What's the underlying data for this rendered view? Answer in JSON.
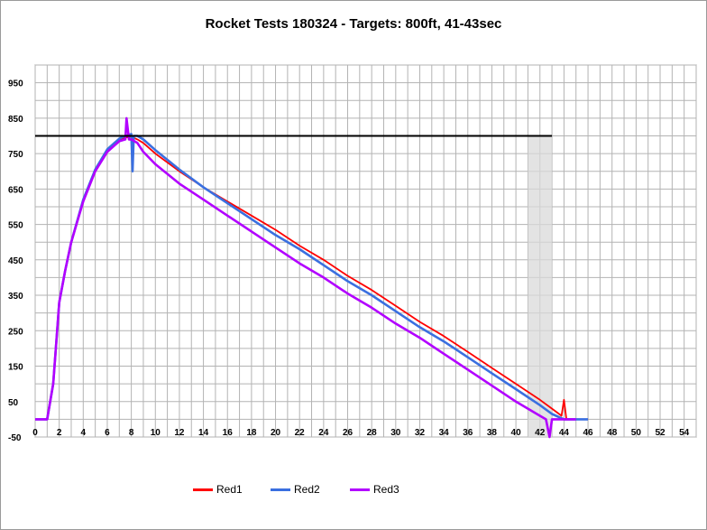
{
  "chart_data": {
    "type": "line",
    "title": "Rocket Tests 180324 - Targets: 800ft, 41-43sec",
    "xlabel": "",
    "ylabel": "",
    "xlim": [
      0,
      55
    ],
    "ylim": [
      -50,
      1000
    ],
    "x_ticks": [
      "0",
      "2",
      "4",
      "6",
      "8",
      "10",
      "12",
      "14",
      "16",
      "18",
      "20",
      "22",
      "24",
      "26",
      "28",
      "30",
      "32",
      "34",
      "36",
      "38",
      "40",
      "42",
      "44",
      "46",
      "48",
      "50",
      "52",
      "54"
    ],
    "y_ticks": [
      "-50",
      "50",
      "150",
      "250",
      "350",
      "450",
      "550",
      "650",
      "750",
      "850",
      "950"
    ],
    "grid": true,
    "legend_position": "bottom",
    "target_altitude": 800,
    "target_time_window": [
      41,
      43
    ],
    "colors": {
      "target_line": "#000000",
      "target_band": "#d9d9d9",
      "grid": "#b3b3b3"
    },
    "series": [
      {
        "name": "Red1",
        "color": "#ff0000",
        "x": [
          0,
          1,
          1.5,
          2,
          2.5,
          3,
          4,
          5,
          6,
          7,
          7.5,
          8,
          8.5,
          9,
          10,
          12,
          14,
          16,
          18,
          20,
          22,
          24,
          26,
          28,
          30,
          32,
          34,
          36,
          38,
          40,
          42,
          43,
          43.8,
          44,
          44.2,
          45,
          46
        ],
        "y": [
          0,
          0,
          100,
          330,
          420,
          500,
          620,
          705,
          760,
          790,
          795,
          798,
          790,
          780,
          750,
          700,
          655,
          615,
          575,
          535,
          490,
          450,
          405,
          365,
          320,
          275,
          235,
          190,
          145,
          100,
          55,
          30,
          10,
          55,
          0,
          0,
          0
        ]
      },
      {
        "name": "Red2",
        "color": "#3a6fe0",
        "x": [
          0,
          1,
          1.5,
          2,
          2.5,
          3,
          4,
          5,
          6,
          7,
          7.5,
          8,
          8.1,
          8.2,
          8.5,
          9,
          10,
          12,
          14,
          16,
          18,
          20,
          22,
          24,
          26,
          28,
          30,
          32,
          34,
          36,
          38,
          40,
          42,
          43,
          44,
          45,
          46
        ],
        "y": [
          0,
          0,
          100,
          330,
          420,
          500,
          620,
          705,
          762,
          792,
          800,
          805,
          700,
          800,
          800,
          790,
          760,
          705,
          655,
          610,
          565,
          520,
          480,
          435,
          390,
          350,
          305,
          260,
          220,
          175,
          130,
          85,
          40,
          15,
          0,
          0,
          0
        ]
      },
      {
        "name": "Red3",
        "color": "#b200ff",
        "x": [
          0,
          1,
          1.5,
          2,
          2.5,
          3,
          4,
          5,
          6,
          7,
          7.5,
          7.6,
          7.8,
          8,
          8.5,
          9,
          10,
          12,
          14,
          16,
          18,
          20,
          22,
          24,
          26,
          28,
          30,
          32,
          34,
          36,
          38,
          40,
          42,
          42.5,
          42.8,
          43,
          43.3,
          44,
          45
        ],
        "y": [
          0,
          0,
          100,
          330,
          420,
          500,
          615,
          700,
          755,
          785,
          790,
          850,
          790,
          790,
          780,
          755,
          720,
          665,
          620,
          575,
          530,
          485,
          440,
          400,
          355,
          315,
          270,
          230,
          185,
          140,
          95,
          50,
          10,
          0,
          -50,
          0,
          0,
          0,
          0
        ]
      }
    ]
  }
}
